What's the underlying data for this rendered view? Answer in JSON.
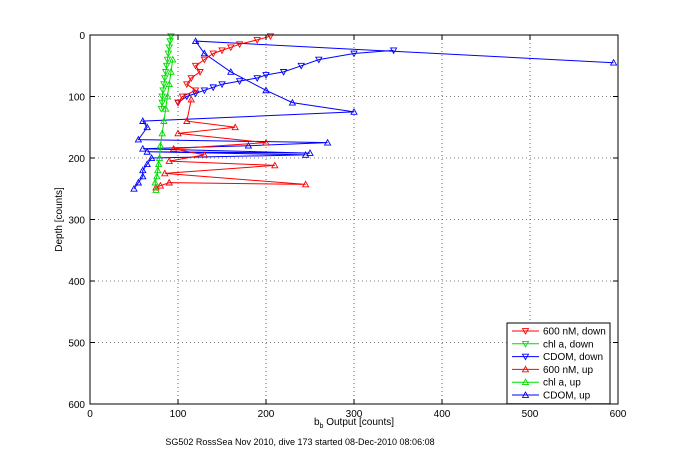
{
  "chart_data": {
    "type": "line",
    "xlabel_main": "b",
    "xlabel_sub": "b",
    "xlabel_rest": " Output [counts]",
    "ylabel": "Depth [counts]",
    "caption": "SG502 RossSea Nov 2010, dive 173 started 08-Dec-2010 08:06:08",
    "xlim": [
      0,
      600
    ],
    "ylim": [
      0,
      600
    ],
    "y_reversed": true,
    "grid": true,
    "legend_position": "bottom-right",
    "x_ticks": [
      "0",
      "100",
      "200",
      "300",
      "400",
      "500",
      "600"
    ],
    "y_ticks": [
      "0",
      "100",
      "200",
      "300",
      "400",
      "500",
      "600"
    ],
    "series": [
      {
        "name": "600 nM, down",
        "color": "#ff0000",
        "marker": "triangle-down",
        "x": [
          205,
          190,
          170,
          160,
          150,
          140,
          130,
          120,
          125,
          115,
          110,
          120,
          105,
          100
        ],
        "y": [
          2,
          8,
          15,
          20,
          25,
          30,
          40,
          50,
          60,
          70,
          80,
          90,
          100,
          110
        ]
      },
      {
        "name": "chl a, down",
        "color": "#00dd00",
        "marker": "triangle-down",
        "x": [
          92,
          91,
          90,
          89,
          88,
          87,
          86,
          85,
          84,
          83,
          82,
          82,
          81
        ],
        "y": [
          2,
          10,
          20,
          30,
          40,
          50,
          60,
          70,
          80,
          90,
          100,
          110,
          120
        ]
      },
      {
        "name": "CDOM, down",
        "color": "#0000ff",
        "marker": "triangle-down",
        "x": [
          345,
          300,
          260,
          240,
          220,
          200,
          190,
          170,
          150,
          140,
          130,
          120,
          110,
          100
        ],
        "y": [
          25,
          30,
          40,
          50,
          60,
          65,
          70,
          75,
          80,
          85,
          90,
          95,
          100,
          110
        ]
      },
      {
        "name": "600 nM, up",
        "color": "#ff0000",
        "marker": "triangle-up",
        "x": [
          75,
          80,
          90,
          245,
          85,
          210,
          90,
          130,
          95,
          200,
          100,
          165,
          110,
          115
        ],
        "y": [
          248,
          245,
          240,
          243,
          225,
          212,
          205,
          195,
          185,
          175,
          160,
          150,
          140,
          105
        ]
      },
      {
        "name": "chl a, up",
        "color": "#00dd00",
        "marker": "triangle-up",
        "x": [
          75,
          74,
          76,
          77,
          78,
          79,
          80,
          82,
          84,
          86,
          88,
          90,
          92,
          94
        ],
        "y": [
          252,
          240,
          230,
          220,
          210,
          200,
          180,
          160,
          140,
          120,
          100,
          80,
          60,
          40
        ]
      },
      {
        "name": "CDOM, up",
        "color": "#0000ff",
        "marker": "triangle-up",
        "x": [
          50,
          55,
          60,
          60,
          65,
          70,
          245,
          65,
          250,
          60,
          180,
          270,
          55,
          65,
          60,
          300,
          230,
          200,
          160,
          130,
          120,
          595
        ],
        "y": [
          250,
          240,
          230,
          220,
          210,
          200,
          195,
          190,
          192,
          185,
          180,
          175,
          170,
          150,
          140,
          125,
          110,
          90,
          60,
          30,
          10,
          45
        ]
      }
    ]
  }
}
